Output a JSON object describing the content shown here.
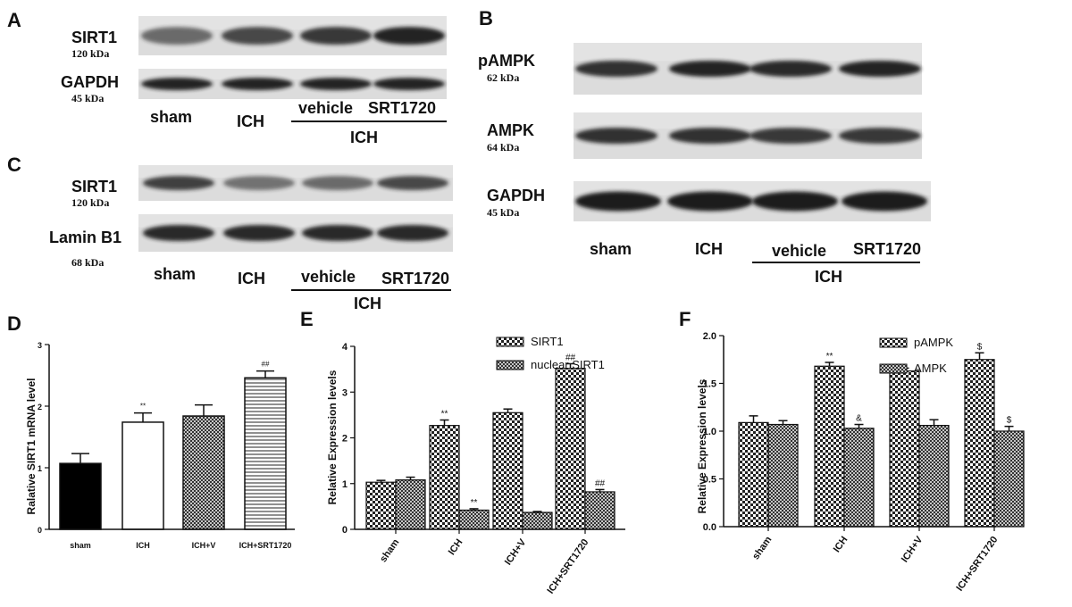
{
  "colors": {
    "ink": "#111111",
    "blot_background": "#d9d9d9",
    "band": "#1c1c1c",
    "bar_solid": "#000000",
    "bar_open": "#ffffff"
  },
  "blots": {
    "A": {
      "letter": "A",
      "rows": [
        {
          "name": "SIRT1",
          "kda": "120 kDa",
          "intensity": [
            0.45,
            0.7,
            0.8,
            0.95
          ]
        },
        {
          "name": "GAPDH",
          "kda": "45 kDa",
          "intensity": [
            0.95,
            0.95,
            0.95,
            0.95
          ]
        }
      ],
      "lanes": [
        "sham",
        "ICH",
        "vehicle",
        "SRT1720"
      ],
      "group_label": "ICH"
    },
    "B": {
      "letter": "B",
      "rows": [
        {
          "name": "pAMPK",
          "kda": "62 kDa",
          "intensity": [
            0.85,
            0.95,
            0.9,
            0.95
          ]
        },
        {
          "name": "AMPK",
          "kda": "64 kDa",
          "intensity": [
            0.85,
            0.85,
            0.8,
            0.8
          ]
        },
        {
          "name": "GAPDH",
          "kda": "45 kDa",
          "intensity": [
            1.0,
            1.0,
            1.0,
            1.0
          ]
        }
      ],
      "lanes": [
        "sham",
        "ICH",
        "vehicle",
        "SRT1720"
      ],
      "group_label": "ICH"
    },
    "C": {
      "letter": "C",
      "rows": [
        {
          "name": "SIRT1",
          "kda": "120 kDa",
          "intensity": [
            0.75,
            0.4,
            0.45,
            0.7
          ]
        },
        {
          "name": "Lamin B1",
          "kda": "68 kDa",
          "intensity": [
            0.9,
            0.9,
            0.9,
            0.9
          ]
        }
      ],
      "lanes": [
        "sham",
        "ICH",
        "vehicle",
        "SRT1720"
      ],
      "group_label": "ICH"
    }
  },
  "chart_data": [
    {
      "panel": "D",
      "type": "bar",
      "title": "",
      "xlabel": "",
      "ylabel": "Ralative SIRT1 mRNA level",
      "categories": [
        "sham",
        "ICH",
        "ICH+V",
        "ICH+SRT1720"
      ],
      "values": [
        1.07,
        1.74,
        1.84,
        2.46
      ],
      "errors": [
        0.16,
        0.15,
        0.18,
        0.11
      ],
      "patterns": [
        "solid",
        "open",
        "crosshatch",
        "horizontal-lines"
      ],
      "annotations": [
        "",
        "**",
        "",
        "##"
      ],
      "ylim": [
        0,
        3
      ],
      "yticks": [
        "0",
        "1",
        "2",
        "3"
      ],
      "grid": false,
      "legend": "none"
    },
    {
      "panel": "E",
      "type": "bar",
      "title": "",
      "xlabel": "",
      "ylabel": "Relative Expression levels",
      "categories": [
        "sham",
        "ICH",
        "ICH+V",
        "ICH+SRT1720"
      ],
      "series": [
        {
          "name": "SIRT1",
          "values": [
            1.03,
            2.27,
            2.55,
            3.52
          ],
          "errors": [
            0.04,
            0.12,
            0.08,
            0.1
          ],
          "annotations": [
            "",
            "**",
            "",
            "##"
          ]
        },
        {
          "name": "nuclear SIRT1",
          "values": [
            1.08,
            0.42,
            0.37,
            0.82
          ],
          "errors": [
            0.06,
            0.03,
            0.02,
            0.05
          ],
          "annotations": [
            "",
            "**",
            "",
            "##"
          ]
        }
      ],
      "ylim": [
        0,
        4
      ],
      "yticks": [
        "0",
        "1",
        "2",
        "3",
        "4"
      ],
      "grid": false,
      "legend": "top-right"
    },
    {
      "panel": "F",
      "type": "bar",
      "title": "",
      "xlabel": "",
      "ylabel": "Relative Expression levels",
      "categories": [
        "sham",
        "ICH",
        "ICH+V",
        "ICH+SRT1720"
      ],
      "series": [
        {
          "name": "pAMPK",
          "values": [
            1.09,
            1.68,
            1.63,
            1.75
          ],
          "errors": [
            0.07,
            0.04,
            0.03,
            0.07
          ],
          "annotations": [
            "",
            "**",
            "",
            "$"
          ]
        },
        {
          "name": "AMPK",
          "values": [
            1.07,
            1.03,
            1.06,
            1.0
          ],
          "errors": [
            0.04,
            0.04,
            0.06,
            0.05
          ],
          "annotations": [
            "",
            "&",
            "",
            "$"
          ]
        }
      ],
      "ylim": [
        0,
        2.0
      ],
      "yticks": [
        "0.0",
        "0.5",
        "1.0",
        "1.5",
        "2.0"
      ],
      "grid": false,
      "legend": "top-right"
    }
  ]
}
